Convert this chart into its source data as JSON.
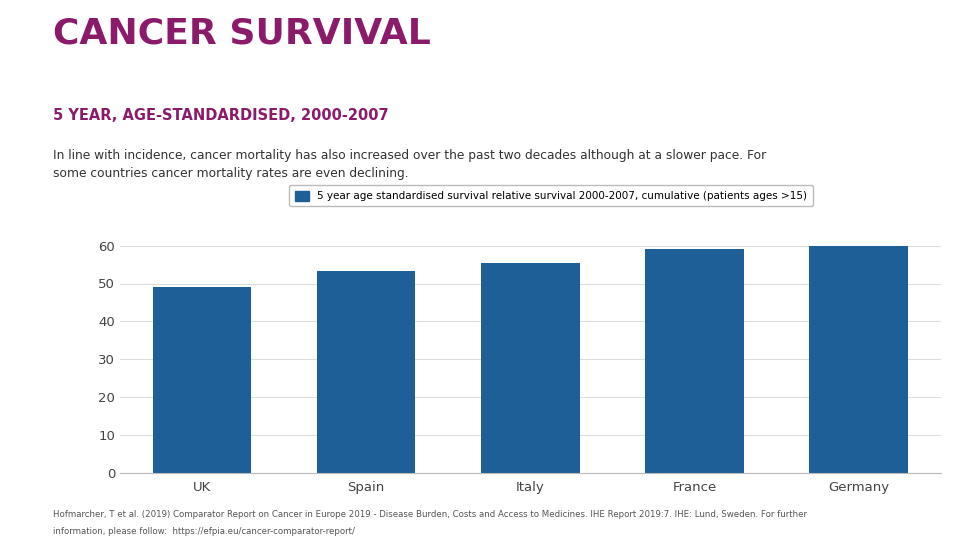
{
  "title_main": "CANCER SURVIVAL",
  "title_sub": "5 YEAR, AGE-STANDARDISED, 2000-2007",
  "body_text": "In line with incidence, cancer mortality has also increased over the past two decades although at a slower pace. For\nsome countries cancer mortality rates are even declining.",
  "legend_label": "5 year age standardised survival relative survival 2000-2007, cumulative (patients ages >15)",
  "categories": [
    "UK",
    "Spain",
    "Italy",
    "France",
    "Germany"
  ],
  "values": [
    49.0,
    53.2,
    55.5,
    59.0,
    60.0
  ],
  "bar_color": "#1e5f97",
  "background_color": "#ffffff",
  "title_main_color": "#8b1a6b",
  "title_sub_color": "#8b1a6b",
  "body_text_color": "#333333",
  "axis_color": "#444444",
  "ylim": [
    0,
    65
  ],
  "yticks": [
    0,
    10,
    20,
    30,
    40,
    50,
    60
  ],
  "footnote_line1": "Hofmarcher, T et al. (2019) Comparator Report on Cancer in Europe 2019 - Disease Burden, Costs and Access to Medicines. IHE Report 2019:7. IHE: Lund, Sweden. For further",
  "footnote_line2": "information, please follow:  https://efpia.eu/cancer-comparator-report/"
}
